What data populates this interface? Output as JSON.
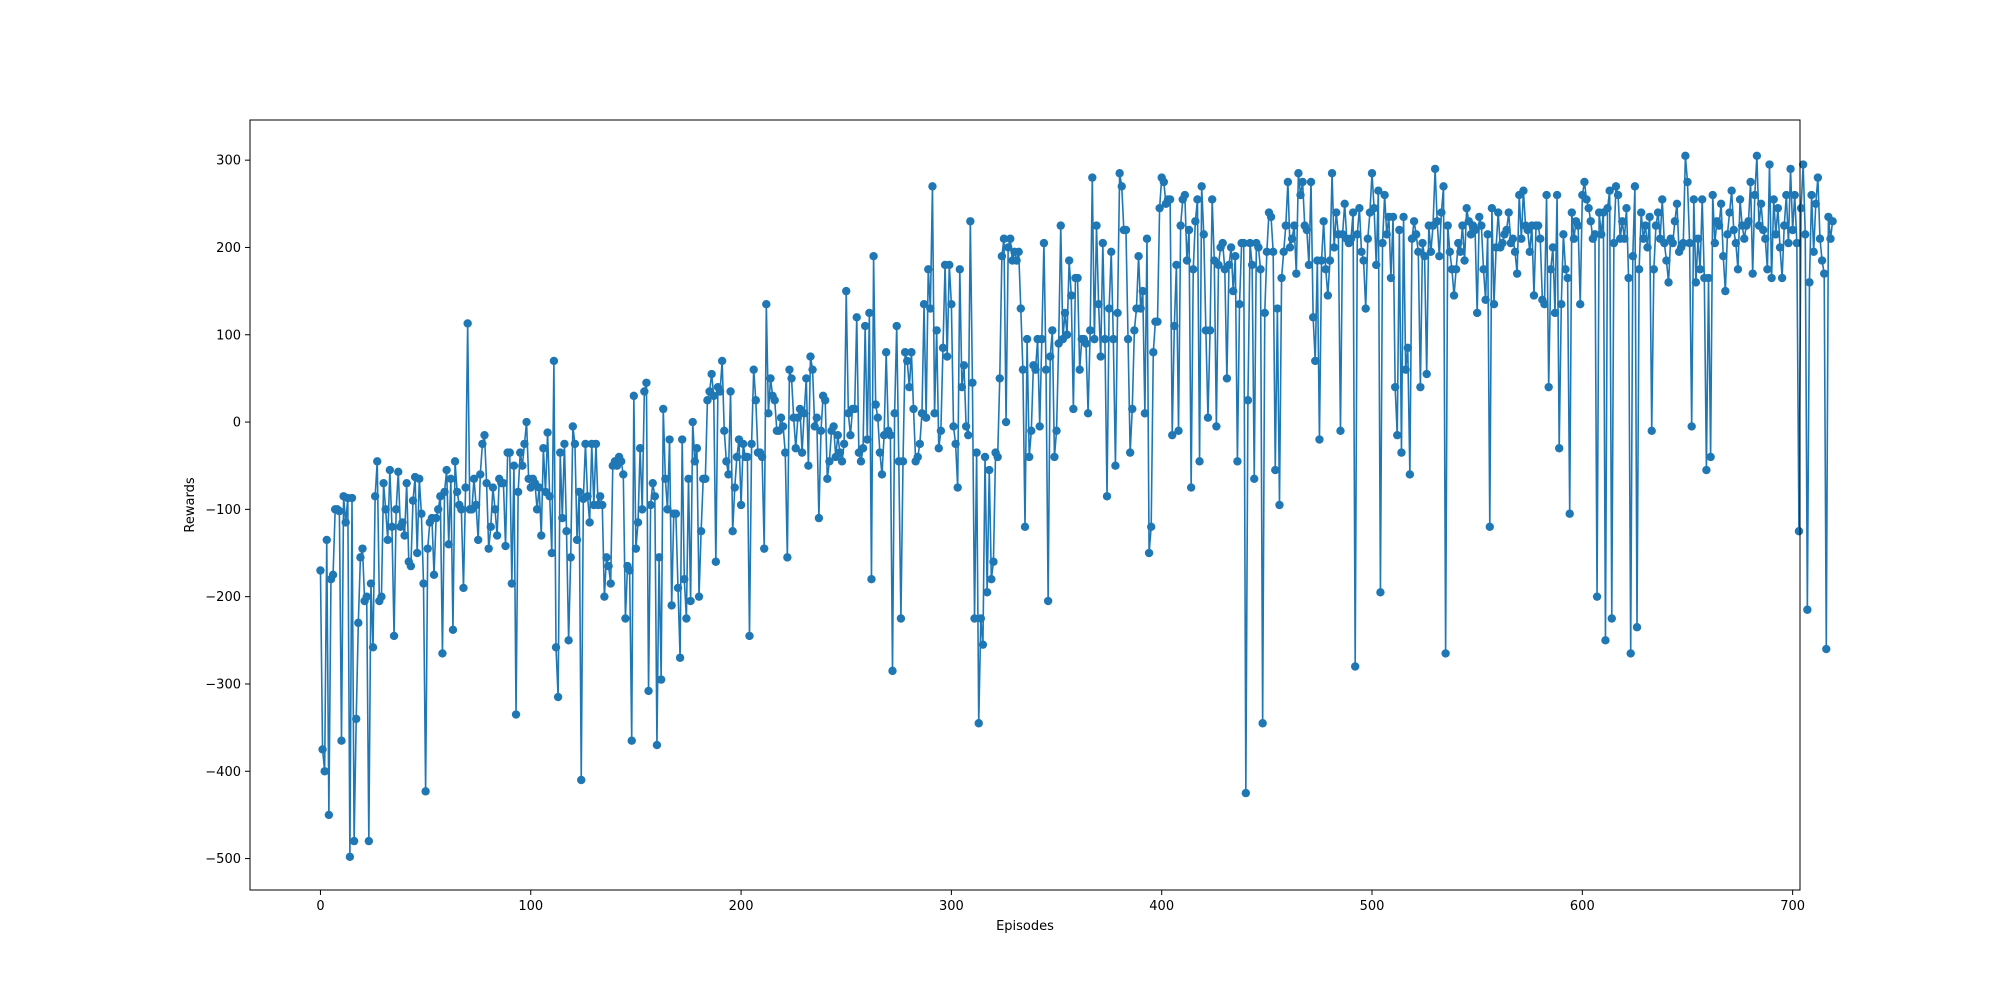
{
  "chart_data": {
    "type": "line",
    "title": "",
    "xlabel": "Episodes",
    "ylabel": "Rewards",
    "xlim": [
      -33.5,
      703.5
    ],
    "ylim": [
      -536,
      346
    ],
    "x_ticks": [
      0,
      100,
      200,
      300,
      400,
      500,
      600,
      700
    ],
    "y_ticks": [
      -500,
      -400,
      -300,
      -200,
      -100,
      0,
      100,
      200,
      300
    ],
    "x_tick_labels": [
      "0",
      "100",
      "200",
      "300",
      "400",
      "500",
      "600",
      "700"
    ],
    "y_tick_labels": [
      "−500",
      "−400",
      "−300",
      "−200",
      "−100",
      "0",
      "100",
      "200",
      "300"
    ],
    "grid": false,
    "legend": "none",
    "marker": "circle",
    "series": [
      {
        "color": "#1f77b4",
        "x_start": 0,
        "x_step": 1,
        "values": [
          -170,
          -375,
          -400,
          -135,
          -450,
          -180,
          -175,
          -100,
          -100,
          -102,
          -365,
          -85,
          -115,
          -87,
          -498,
          -87,
          -480,
          -340,
          -230,
          -155,
          -145,
          -205,
          -200,
          -480,
          -185,
          -258,
          -85,
          -45,
          -205,
          -200,
          -70,
          -100,
          -135,
          -55,
          -120,
          -245,
          -100,
          -57,
          -120,
          -115,
          -130,
          -70,
          -160,
          -165,
          -90,
          -63,
          -150,
          -65,
          -105,
          -185,
          -423,
          -145,
          -115,
          -110,
          -175,
          -110,
          -100,
          -85,
          -265,
          -80,
          -55,
          -140,
          -65,
          -238,
          -45,
          -80,
          -95,
          -100,
          -190,
          -75,
          113,
          -100,
          -100,
          -65,
          -95,
          -135,
          -60,
          -25,
          -15,
          -70,
          -145,
          -120,
          -75,
          -100,
          -130,
          -65,
          -70,
          -70,
          -142,
          -35,
          -35,
          -185,
          -50,
          -335,
          -80,
          -35,
          -50,
          -25,
          0,
          -65,
          -75,
          -65,
          -70,
          -100,
          -75,
          -130,
          -30,
          -80,
          -12,
          -85,
          -150,
          70,
          -258,
          -315,
          -35,
          -110,
          -25,
          -125,
          -250,
          -155,
          -5,
          -25,
          -135,
          -80,
          -410,
          -88,
          -25,
          -85,
          -115,
          -25,
          -95,
          -25,
          -95,
          -85,
          -95,
          -200,
          -155,
          -165,
          -185,
          -50,
          -45,
          -50,
          -40,
          -45,
          -60,
          -225,
          -165,
          -170,
          -365,
          30,
          -145,
          -115,
          -30,
          -100,
          35,
          45,
          -308,
          -95,
          -70,
          -85,
          -370,
          -155,
          -295,
          15,
          -65,
          -100,
          -20,
          -210,
          -105,
          -105,
          -190,
          -270,
          -20,
          -180,
          -225,
          -65,
          -205,
          0,
          -45,
          -30,
          -200,
          -125,
          -65,
          -65,
          25,
          35,
          55,
          30,
          -160,
          40,
          35,
          70,
          -10,
          -45,
          -60,
          35,
          -125,
          -75,
          -40,
          -20,
          -95,
          -25,
          -40,
          -40,
          -245,
          -25,
          60,
          25,
          -35,
          -35,
          -40,
          -145,
          135,
          10,
          50,
          30,
          25,
          -10,
          -10,
          5,
          -5,
          -35,
          -155,
          60,
          50,
          5,
          -30,
          5,
          15,
          -35,
          10,
          50,
          -50,
          75,
          60,
          -5,
          5,
          -110,
          -10,
          30,
          25,
          -65,
          -45,
          -10,
          -5,
          -40,
          -15,
          -35,
          -45,
          -25,
          150,
          10,
          -15,
          15,
          15,
          120,
          -35,
          -45,
          -30,
          110,
          -20,
          125,
          -180,
          190,
          20,
          5,
          -35,
          -60,
          -15,
          80,
          -10,
          -15,
          -285,
          10,
          110,
          -45,
          -225,
          -45,
          80,
          70,
          40,
          80,
          15,
          -45,
          -40,
          -25,
          10,
          135,
          5,
          175,
          130,
          270,
          10,
          105,
          -30,
          -10,
          85,
          180,
          75,
          180,
          135,
          -5,
          -25,
          -75,
          175,
          40,
          65,
          -5,
          -15,
          230,
          45,
          -225,
          -35,
          -345,
          -225,
          -255,
          -40,
          -195,
          -55,
          -180,
          -160,
          -35,
          -40,
          50,
          190,
          210,
          0,
          200,
          210,
          185,
          195,
          185,
          195,
          130,
          60,
          -120,
          95,
          -40,
          -10,
          65,
          60,
          95,
          -5,
          95,
          205,
          60,
          -205,
          75,
          105,
          -40,
          -10,
          90,
          225,
          95,
          125,
          100,
          185,
          145,
          15,
          165,
          165,
          60,
          95,
          95,
          90,
          10,
          105,
          280,
          95,
          225,
          135,
          75,
          205,
          95,
          -85,
          130,
          195,
          95,
          -50,
          125,
          285,
          270,
          220,
          220,
          95,
          -35,
          15,
          105,
          130,
          190,
          130,
          150,
          10,
          210,
          -150,
          -120,
          80,
          115,
          115,
          245,
          280,
          275,
          250,
          255,
          255,
          -15,
          110,
          180,
          -10,
          225,
          255,
          260,
          185,
          220,
          -75,
          175,
          230,
          255,
          -45,
          270,
          215,
          105,
          5,
          105,
          255,
          185,
          -5,
          180,
          200,
          205,
          175,
          50,
          180,
          200,
          150,
          190,
          -45,
          135,
          205,
          205,
          -425,
          25,
          205,
          180,
          -65,
          205,
          200,
          175,
          -345,
          125,
          195,
          240,
          235,
          195,
          -55,
          130,
          -95,
          165,
          195,
          225,
          275,
          200,
          210,
          225,
          170,
          285,
          260,
          275,
          225,
          220,
          180,
          275,
          120,
          70,
          185,
          -20,
          185,
          230,
          175,
          145,
          185,
          285,
          200,
          240,
          215,
          -10,
          215,
          250,
          210,
          205,
          210,
          240,
          -280,
          215,
          245,
          195,
          185,
          130,
          210,
          240,
          285,
          245,
          180,
          265,
          -195,
          205,
          260,
          215,
          235,
          165,
          235,
          40,
          -15,
          220,
          -35,
          235,
          60,
          85,
          -60,
          210,
          230,
          215,
          195,
          40,
          205,
          190,
          55,
          225,
          195,
          225,
          290,
          230,
          190,
          240,
          270,
          -265,
          225,
          195,
          175,
          145,
          175,
          205,
          195,
          225,
          185,
          245,
          230,
          215,
          225,
          220,
          125,
          235,
          225,
          175,
          140,
          215,
          -120,
          245,
          135,
          200,
          240,
          200,
          205,
          215,
          220,
          240,
          205,
          210,
          195,
          170,
          260,
          210,
          265,
          225,
          220,
          195,
          225,
          145,
          225,
          225,
          210,
          140,
          135,
          260,
          40,
          175,
          200,
          125,
          260,
          -30,
          135,
          215,
          175,
          165,
          -105,
          240,
          210,
          230,
          225,
          135,
          260,
          275,
          255,
          245,
          230,
          210,
          215,
          -200,
          240,
          215,
          240,
          -250,
          245,
          265,
          -225,
          205,
          270,
          260,
          210,
          230,
          210,
          245,
          165,
          -265,
          190,
          270,
          -235,
          175,
          240,
          210,
          225,
          200,
          235,
          -10,
          175,
          225,
          240,
          210,
          255,
          205,
          185,
          160,
          210,
          205,
          230,
          250,
          195,
          200,
          205,
          305,
          275,
          205,
          -5,
          255,
          160,
          210,
          175,
          255,
          165,
          -55,
          165,
          -40,
          260,
          205,
          230,
          225,
          250,
          190,
          150,
          215,
          240,
          265,
          220,
          205,
          175,
          255,
          225,
          210,
          225,
          230,
          275,
          170,
          260,
          305,
          225,
          250,
          220,
          210,
          175,
          295,
          165,
          255,
          215,
          245,
          200,
          165,
          225,
          260,
          205,
          290,
          220,
          260,
          205,
          -125,
          245,
          295,
          215,
          -215,
          160,
          260,
          195,
          250,
          280,
          210,
          185,
          170,
          -260,
          235,
          210,
          230
        ]
      }
    ]
  }
}
